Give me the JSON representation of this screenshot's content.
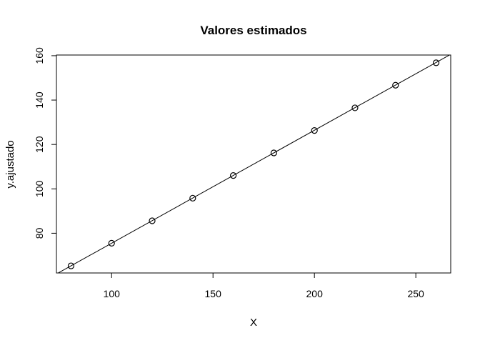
{
  "chart_data": {
    "type": "scatter",
    "title": "Valores estimados",
    "xlabel": "X",
    "ylabel": "y.ajustado",
    "xlim": [
      72.8,
      267.2
    ],
    "ylim": [
      62.1,
      160.3
    ],
    "x_ticks": [
      100,
      150,
      200,
      250
    ],
    "y_ticks": [
      80,
      100,
      120,
      140,
      160
    ],
    "grid": false,
    "legend": "none",
    "point_style": "open-circle",
    "colors": {
      "points": "#000000",
      "line": "#000000",
      "axes": "#000000"
    },
    "series": [
      {
        "x": [
          80,
          100,
          120,
          140,
          160,
          180,
          200,
          220,
          240,
          260
        ],
        "y": [
          65.3,
          75.5,
          85.6,
          95.8,
          106.0,
          116.2,
          126.3,
          136.5,
          146.7,
          156.8
        ]
      }
    ],
    "fit_line": {
      "intercept": 24.6,
      "slope": 0.509
    }
  }
}
